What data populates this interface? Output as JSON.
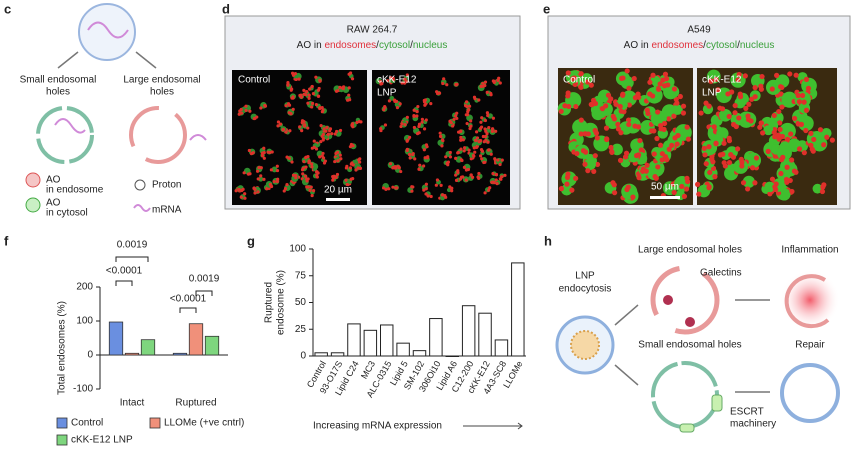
{
  "panels": {
    "c": {
      "letter": "c",
      "small_holes": [
        "Small endosomal",
        "holes"
      ],
      "large_holes": [
        "Large endosomal",
        "holes"
      ],
      "legend": {
        "ao_endosome": [
          "AO",
          "in endosome"
        ],
        "ao_cytosol": [
          "AO",
          "in cytosol"
        ],
        "proton": "Proton",
        "mrna": "mRNA"
      },
      "ao": "AO",
      "proton_symbol": "P"
    },
    "d": {
      "letter": "d",
      "title": "RAW 264.7",
      "subtitle_parts": [
        "AO in ",
        "endosomes",
        "/",
        "cytosol",
        "/",
        "nucleus"
      ],
      "left_label": "Control",
      "right_label": [
        "cKK-E12",
        "LNP"
      ],
      "scale": "20 µm"
    },
    "e": {
      "letter": "e",
      "title": "A549",
      "subtitle_parts": [
        "AO in ",
        "endosomes",
        "/",
        "cytosol",
        "/",
        "nucleus"
      ],
      "left_label": "Control",
      "right_label": [
        "cKK-E12",
        "LNP"
      ],
      "scale": "50 µm"
    },
    "h": {
      "letter": "h",
      "lnp": [
        "LNP",
        "endocytosis"
      ],
      "large_holes": "Large endosomal holes",
      "galectins": "Galectins",
      "inflammation": "Inflammation",
      "small_holes": "Small endosomal holes",
      "repair": "Repair",
      "escrt": [
        "ESCRT",
        "machinery"
      ]
    }
  },
  "chart_data": [
    {
      "type": "bar",
      "panel": "f",
      "ylabel": "Total endosomes (%)",
      "categories": [
        "Intact",
        "Ruptured"
      ],
      "series": [
        {
          "name": "Control",
          "color": "#6a8fe0",
          "values": [
            97,
            5
          ]
        },
        {
          "name": "LLOMe (+ve cntrl)",
          "color": "#f0907a",
          "values": [
            5,
            92
          ]
        },
        {
          "name": "cKK-E12 LNP",
          "color": "#7ed67e",
          "values": [
            45,
            55
          ]
        }
      ],
      "annotations": [
        "0.0019",
        "<0.0001",
        "0.0019",
        "<0.0001"
      ],
      "ylim": [
        -100,
        200
      ],
      "yticks": [
        -100,
        0,
        100,
        200
      ],
      "legend": "bottom"
    },
    {
      "type": "bar",
      "panel": "g",
      "ylabel": [
        "Ruptured",
        "endosome (%)"
      ],
      "xlabel": "Increasing mRNA expression",
      "categories": [
        "Control",
        "93-O17S",
        "Lipid C24",
        "MC3",
        "ALC-0315",
        "Lipid 5",
        "SM-102",
        "306Oi10",
        "Lipid A6",
        "C12-200",
        "cKK-E12",
        "4A3-SC8",
        "LLOMe"
      ],
      "values": [
        3,
        3,
        30,
        24,
        29,
        12,
        5,
        35,
        0,
        47,
        40,
        15,
        87
      ],
      "color": "#ffffff",
      "ylim": [
        0,
        100
      ],
      "yticks": [
        0,
        25,
        50,
        75,
        100
      ]
    }
  ]
}
